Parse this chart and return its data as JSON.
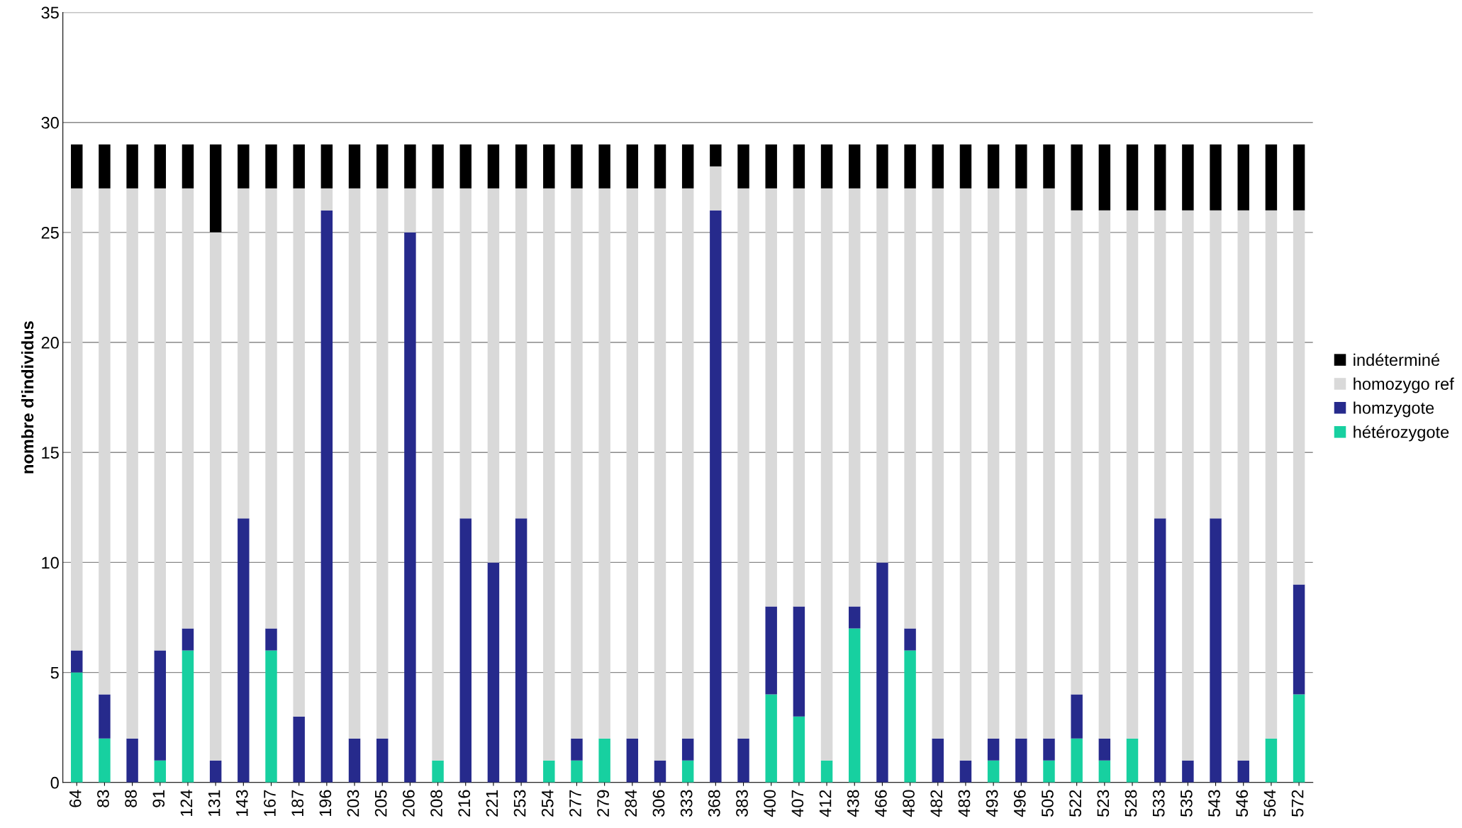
{
  "chart_data": {
    "type": "bar",
    "stacked": true,
    "ylabel": "nombre d'individus",
    "categories": [
      "64",
      "83",
      "88",
      "91",
      "124",
      "131",
      "143",
      "167",
      "187",
      "196",
      "203",
      "205",
      "206",
      "208",
      "216",
      "221",
      "253",
      "254",
      "277",
      "279",
      "284",
      "306",
      "333",
      "368",
      "383",
      "400",
      "407",
      "412",
      "438",
      "466",
      "480",
      "482",
      "483",
      "493",
      "496",
      "505",
      "522",
      "523",
      "528",
      "533",
      "535",
      "543",
      "546",
      "564",
      "572"
    ],
    "series": [
      {
        "name": "hétérozygote",
        "color": "#17d0a0",
        "values": [
          5,
          2,
          0,
          1,
          6,
          0,
          0,
          6,
          0,
          0,
          0,
          0,
          0,
          1,
          0,
          0,
          0,
          1,
          1,
          2,
          0,
          0,
          1,
          0,
          0,
          4,
          3,
          1,
          7,
          0,
          6,
          0,
          0,
          1,
          0,
          1,
          2,
          1,
          2,
          0,
          0,
          0,
          0,
          2,
          4
        ]
      },
      {
        "name": "homzygote",
        "color": "#262a8c",
        "values": [
          1,
          2,
          2,
          5,
          1,
          1,
          12,
          1,
          3,
          26,
          2,
          2,
          25,
          0,
          12,
          10,
          12,
          0,
          1,
          0,
          2,
          1,
          1,
          26,
          2,
          4,
          5,
          0,
          1,
          10,
          1,
          2,
          1,
          1,
          2,
          1,
          2,
          1,
          0,
          12,
          1,
          12,
          1,
          0,
          5
        ]
      },
      {
        "name": "homozygo ref",
        "color": "#d9d9d9",
        "values": [
          21,
          23,
          25,
          21,
          20,
          24,
          15,
          20,
          24,
          1,
          25,
          25,
          2,
          26,
          15,
          17,
          15,
          26,
          25,
          25,
          25,
          26,
          25,
          2,
          25,
          19,
          19,
          26,
          19,
          17,
          20,
          25,
          26,
          25,
          25,
          25,
          22,
          24,
          24,
          14,
          25,
          14,
          25,
          24,
          17
        ]
      },
      {
        "name": "indéterminé",
        "color": "#000000",
        "values": [
          2,
          2,
          2,
          2,
          2,
          4,
          2,
          2,
          2,
          2,
          2,
          2,
          2,
          2,
          2,
          2,
          2,
          2,
          2,
          2,
          2,
          2,
          2,
          1,
          2,
          2,
          2,
          2,
          2,
          2,
          2,
          2,
          2,
          2,
          2,
          2,
          3,
          3,
          3,
          3,
          3,
          3,
          3,
          3,
          3
        ]
      }
    ],
    "ylim": [
      0,
      35
    ],
    "yticks": [
      0,
      5,
      10,
      15,
      20,
      25,
      30,
      35
    ],
    "grid": "y",
    "legend": "right"
  }
}
